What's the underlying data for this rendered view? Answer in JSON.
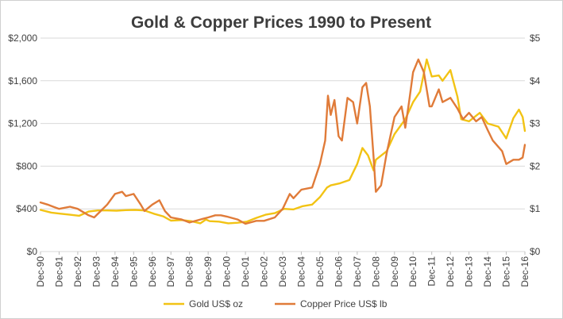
{
  "chart_data": {
    "type": "line",
    "title": "Gold & Copper Prices 1990 to Present",
    "xlabel": "",
    "ylabel_left": "",
    "ylabel_right": "",
    "x_ticks": [
      "Dec-90",
      "Dec-91",
      "Dec-92",
      "Dec-93",
      "Dec-94",
      "Dec-95",
      "Dec-96",
      "Dec-97",
      "Dec-98",
      "Dec-99",
      "Dec-00",
      "Dec-01",
      "Dec-02",
      "Dec-03",
      "Dec-04",
      "Dec-05",
      "Dec-06",
      "Dec-07",
      "Dec-08",
      "Dec-09",
      "Dec-10",
      "Dec-11",
      "Dec-12",
      "Dec-13",
      "Dec-14",
      "Dec-15",
      "Dec-16"
    ],
    "y_left": {
      "ticks": [
        "$0",
        "$400",
        "$800",
        "$1,200",
        "$1,600",
        "$2,000"
      ],
      "ylim": [
        0,
        2000
      ]
    },
    "y_right": {
      "ticks": [
        "$0",
        "$1",
        "$2",
        "$3",
        "$4",
        "$5"
      ],
      "ylim": [
        0,
        5
      ]
    },
    "grid": true,
    "legend_position": "bottom",
    "series": [
      {
        "name": "Gold US$ oz",
        "color": "#f2c314",
        "axis": "left",
        "points": [
          [
            1990.92,
            390
          ],
          [
            1991.5,
            365
          ],
          [
            1992,
            355
          ],
          [
            1992.5,
            345
          ],
          [
            1993,
            335
          ],
          [
            1993.5,
            375
          ],
          [
            1994,
            385
          ],
          [
            1994.5,
            385
          ],
          [
            1995,
            383
          ],
          [
            1995.5,
            388
          ],
          [
            1996,
            390
          ],
          [
            1996.5,
            385
          ],
          [
            1997,
            355
          ],
          [
            1997.5,
            330
          ],
          [
            1997.92,
            290
          ],
          [
            1998.5,
            295
          ],
          [
            1999,
            285
          ],
          [
            1999.5,
            265
          ],
          [
            1999.8,
            300
          ],
          [
            2000,
            285
          ],
          [
            2000.5,
            280
          ],
          [
            2001,
            265
          ],
          [
            2001.5,
            270
          ],
          [
            2002,
            280
          ],
          [
            2002.5,
            315
          ],
          [
            2003,
            345
          ],
          [
            2003.5,
            360
          ],
          [
            2004,
            400
          ],
          [
            2004.5,
            395
          ],
          [
            2005,
            425
          ],
          [
            2005.5,
            440
          ],
          [
            2005.92,
            510
          ],
          [
            2006.3,
            600
          ],
          [
            2006.5,
            620
          ],
          [
            2007,
            640
          ],
          [
            2007.5,
            670
          ],
          [
            2007.92,
            820
          ],
          [
            2008.2,
            970
          ],
          [
            2008.5,
            900
          ],
          [
            2008.8,
            760
          ],
          [
            2008.92,
            860
          ],
          [
            2009.5,
            940
          ],
          [
            2009.92,
            1100
          ],
          [
            2010.5,
            1240
          ],
          [
            2010.92,
            1400
          ],
          [
            2011.3,
            1500
          ],
          [
            2011.65,
            1800
          ],
          [
            2011.92,
            1640
          ],
          [
            2012.3,
            1650
          ],
          [
            2012.5,
            1600
          ],
          [
            2012.92,
            1700
          ],
          [
            2013.3,
            1450
          ],
          [
            2013.5,
            1240
          ],
          [
            2013.92,
            1220
          ],
          [
            2014.5,
            1300
          ],
          [
            2014.92,
            1200
          ],
          [
            2015.5,
            1170
          ],
          [
            2015.92,
            1060
          ],
          [
            2016.3,
            1250
          ],
          [
            2016.6,
            1330
          ],
          [
            2016.8,
            1260
          ],
          [
            2016.92,
            1130
          ]
        ]
      },
      {
        "name": "Copper Price US$ lb",
        "color": "#e07b39",
        "axis": "right",
        "points": [
          [
            1990.92,
            1.15
          ],
          [
            1991.3,
            1.1
          ],
          [
            1991.6,
            1.05
          ],
          [
            1991.92,
            1.0
          ],
          [
            1992.5,
            1.05
          ],
          [
            1992.92,
            1.0
          ],
          [
            1993.5,
            0.85
          ],
          [
            1993.8,
            0.8
          ],
          [
            1993.92,
            0.85
          ],
          [
            1994.5,
            1.1
          ],
          [
            1994.92,
            1.35
          ],
          [
            1995.3,
            1.4
          ],
          [
            1995.5,
            1.3
          ],
          [
            1995.92,
            1.35
          ],
          [
            1996.3,
            1.1
          ],
          [
            1996.5,
            0.95
          ],
          [
            1996.92,
            1.1
          ],
          [
            1997.3,
            1.2
          ],
          [
            1997.6,
            0.95
          ],
          [
            1997.92,
            0.8
          ],
          [
            1998.5,
            0.75
          ],
          [
            1998.92,
            0.68
          ],
          [
            1999.5,
            0.75
          ],
          [
            1999.92,
            0.8
          ],
          [
            2000.3,
            0.85
          ],
          [
            2000.6,
            0.85
          ],
          [
            2000.92,
            0.82
          ],
          [
            2001.5,
            0.75
          ],
          [
            2001.92,
            0.65
          ],
          [
            2002.5,
            0.72
          ],
          [
            2002.92,
            0.72
          ],
          [
            2003.5,
            0.8
          ],
          [
            2003.92,
            1.0
          ],
          [
            2004.3,
            1.35
          ],
          [
            2004.5,
            1.25
          ],
          [
            2004.92,
            1.45
          ],
          [
            2005.5,
            1.5
          ],
          [
            2005.92,
            2.05
          ],
          [
            2006.2,
            2.6
          ],
          [
            2006.35,
            3.65
          ],
          [
            2006.5,
            3.2
          ],
          [
            2006.7,
            3.55
          ],
          [
            2006.92,
            2.7
          ],
          [
            2007.1,
            2.6
          ],
          [
            2007.4,
            3.6
          ],
          [
            2007.7,
            3.5
          ],
          [
            2007.92,
            3.0
          ],
          [
            2008.2,
            3.85
          ],
          [
            2008.4,
            3.95
          ],
          [
            2008.6,
            3.4
          ],
          [
            2008.8,
            2.2
          ],
          [
            2008.92,
            1.4
          ],
          [
            2009.2,
            1.55
          ],
          [
            2009.5,
            2.3
          ],
          [
            2009.92,
            3.15
          ],
          [
            2010.3,
            3.4
          ],
          [
            2010.5,
            2.9
          ],
          [
            2010.7,
            3.5
          ],
          [
            2010.92,
            4.2
          ],
          [
            2011.2,
            4.5
          ],
          [
            2011.5,
            4.2
          ],
          [
            2011.8,
            3.4
          ],
          [
            2011.92,
            3.4
          ],
          [
            2012.3,
            3.8
          ],
          [
            2012.5,
            3.5
          ],
          [
            2012.92,
            3.6
          ],
          [
            2013.3,
            3.35
          ],
          [
            2013.6,
            3.1
          ],
          [
            2013.92,
            3.25
          ],
          [
            2014.3,
            3.05
          ],
          [
            2014.6,
            3.15
          ],
          [
            2014.92,
            2.85
          ],
          [
            2015.2,
            2.6
          ],
          [
            2015.5,
            2.45
          ],
          [
            2015.7,
            2.35
          ],
          [
            2015.92,
            2.05
          ],
          [
            2016.3,
            2.15
          ],
          [
            2016.6,
            2.15
          ],
          [
            2016.8,
            2.2
          ],
          [
            2016.92,
            2.5
          ]
        ]
      }
    ]
  }
}
